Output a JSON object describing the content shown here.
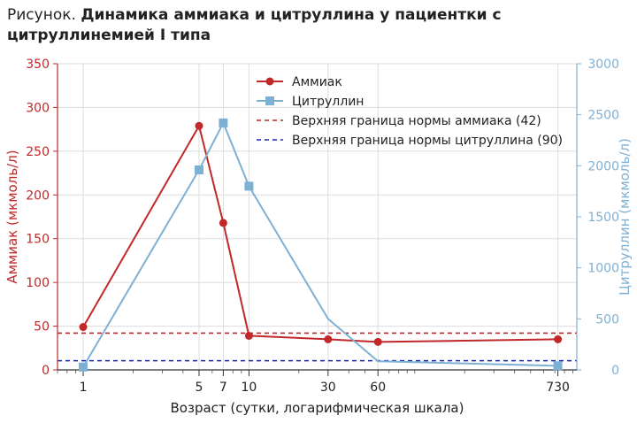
{
  "title": {
    "prefix": "Рисунок.",
    "main": "Динамика аммиака и цитруллина у пациентки с цитруллинемией I типа"
  },
  "chart_data": {
    "type": "line",
    "xscale": "log",
    "xlabel": "Возраст (сутки, логарифмическая шкала)",
    "xlim": [
      0.7,
      950
    ],
    "x_ticks": [
      1,
      5,
      7,
      10,
      30,
      60,
      730
    ],
    "ylabel_left": "Аммиак (мкмоль/л)",
    "ylabel_right": "Цитруллин (мкмоль/л)",
    "ylim_left": [
      0,
      350
    ],
    "ylim_right": [
      0,
      3000
    ],
    "y_ticks_left": [
      0,
      50,
      100,
      150,
      200,
      250,
      300,
      350
    ],
    "y_ticks_right": [
      0,
      500,
      1000,
      1500,
      2000,
      2500,
      3000
    ],
    "legend_position": "top-center",
    "colors": {
      "ammonia": "#c0282a",
      "citrulline": "#7eb0d4",
      "ammonia_limit": "#b22a2a",
      "citrulline_limit": "#1428b4"
    },
    "series": [
      {
        "name": "Аммиак",
        "axis": "left",
        "marker": "circle",
        "x": [
          1,
          5,
          7,
          10,
          30,
          60,
          730
        ],
        "y": [
          49,
          279,
          168,
          39,
          35,
          32,
          35
        ]
      },
      {
        "name": "Цитруллин",
        "axis": "right",
        "marker": "square",
        "x": [
          1,
          5,
          7,
          10,
          30,
          60,
          730
        ],
        "y": [
          28,
          1960,
          2420,
          1800,
          500,
          85,
          40
        ],
        "marked_x": [
          1,
          5,
          7,
          10,
          730
        ]
      }
    ],
    "reference_lines": [
      {
        "name": "Верхняя граница нормы аммиака (42)",
        "axis": "left",
        "value": 42,
        "style": "dashed"
      },
      {
        "name": "Верхняя граница нормы цитруллина (90)",
        "axis": "right",
        "value": 90,
        "style": "dashed"
      }
    ]
  }
}
